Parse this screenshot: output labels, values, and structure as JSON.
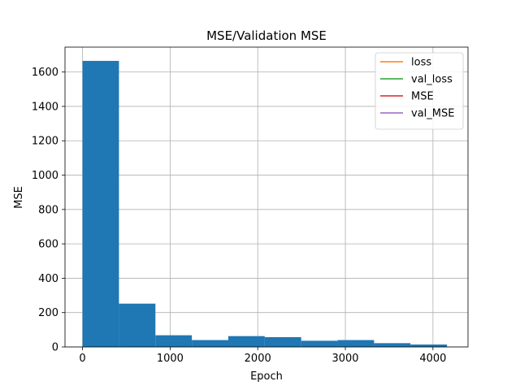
{
  "chart_data": {
    "type": "bar",
    "title": "MSE/Validation MSE",
    "xlabel": "Epoch",
    "ylabel": "MSE",
    "xlim": [
      -200,
      4400
    ],
    "ylim": [
      0,
      1745
    ],
    "xticks": [
      0,
      1000,
      2000,
      3000,
      4000
    ],
    "yticks": [
      0,
      200,
      400,
      600,
      800,
      1000,
      1200,
      1400,
      1600
    ],
    "grid": true,
    "bar_color": "#1f77b4",
    "bins": [
      {
        "start": 0,
        "end": 416,
        "value": 1665
      },
      {
        "start": 416,
        "end": 832,
        "value": 252
      },
      {
        "start": 832,
        "end": 1248,
        "value": 68
      },
      {
        "start": 1248,
        "end": 1664,
        "value": 40
      },
      {
        "start": 1664,
        "end": 2080,
        "value": 63
      },
      {
        "start": 2080,
        "end": 2496,
        "value": 57
      },
      {
        "start": 2496,
        "end": 2912,
        "value": 36
      },
      {
        "start": 2912,
        "end": 3328,
        "value": 40
      },
      {
        "start": 3328,
        "end": 3744,
        "value": 22
      },
      {
        "start": 3744,
        "end": 4160,
        "value": 14
      }
    ],
    "legend": {
      "placement": "top-right",
      "entries": [
        {
          "name": "loss",
          "color": "#ff7f0e"
        },
        {
          "name": "val_loss",
          "color": "#2ca02c"
        },
        {
          "name": "MSE",
          "color": "#d62728"
        },
        {
          "name": "val_MSE",
          "color": "#9467bd"
        }
      ]
    }
  }
}
